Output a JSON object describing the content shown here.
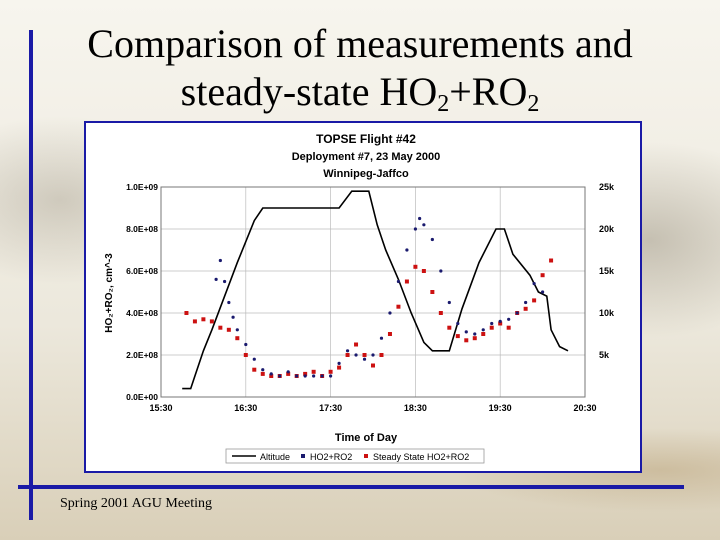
{
  "slide": {
    "title_line1": "Comparison of measurements and",
    "title_line2_prefix": "steady-state HO",
    "title_sub1": "2",
    "title_mid": "+RO",
    "title_sub2": "2",
    "footer": "Spring 2001 AGU Meeting"
  },
  "colors": {
    "frame": "#1a1aa6",
    "altitude": "#000000",
    "measured": "#1a1a6e",
    "steady": "#cc1111"
  },
  "chart_data": {
    "type": "line",
    "title": "TOPSE Flight #42",
    "subtitle_1": "Deployment #7, 23 May 2000",
    "subtitle_2": "Winnipeg-Jaffco",
    "xlabel": "Time of Day",
    "ylabel": "HO₂+RO₂, cm^-3",
    "x_ticks": [
      "15:30",
      "16:30",
      "17:30",
      "18:30",
      "19:30",
      "20:30"
    ],
    "xlim_hours": [
      15.5,
      20.5
    ],
    "y_ticks_left": [
      "0.0E+00",
      "2.0E+08",
      "4.0E+08",
      "6.0E+08",
      "8.0E+08",
      "1.0E+09"
    ],
    "ylim_left": [
      0,
      1000000000.0
    ],
    "y_ticks_right": [
      "5k",
      "10k",
      "15k",
      "20k",
      "25k"
    ],
    "ylim_right_ft": [
      0,
      25000
    ],
    "grid": true,
    "legend_position": "bottom",
    "series": [
      {
        "name": "Altitude",
        "style": "line",
        "axis": "right",
        "points": [
          [
            15.75,
            1000
          ],
          [
            15.85,
            1000
          ],
          [
            15.9,
            2500
          ],
          [
            16.0,
            5500
          ],
          [
            16.1,
            8000
          ],
          [
            16.4,
            16000
          ],
          [
            16.6,
            21000
          ],
          [
            16.7,
            22500
          ],
          [
            17.6,
            22500
          ],
          [
            17.75,
            24500
          ],
          [
            17.95,
            24500
          ],
          [
            18.05,
            20500
          ],
          [
            18.15,
            17500
          ],
          [
            18.3,
            14000
          ],
          [
            18.45,
            10000
          ],
          [
            18.6,
            6500
          ],
          [
            18.7,
            5500
          ],
          [
            18.9,
            5500
          ],
          [
            19.05,
            10500
          ],
          [
            19.25,
            16000
          ],
          [
            19.45,
            20000
          ],
          [
            19.55,
            20000
          ],
          [
            19.65,
            17000
          ],
          [
            19.85,
            14500
          ],
          [
            19.95,
            12500
          ],
          [
            20.05,
            12000
          ],
          [
            20.1,
            8000
          ],
          [
            20.2,
            6000
          ],
          [
            20.3,
            5500
          ]
        ]
      },
      {
        "name": "HO2+RO2",
        "style": "points",
        "axis": "left",
        "points": [
          [
            16.15,
            560000000.0
          ],
          [
            16.2,
            650000000.0
          ],
          [
            16.25,
            550000000.0
          ],
          [
            16.3,
            450000000.0
          ],
          [
            16.35,
            380000000.0
          ],
          [
            16.4,
            320000000.0
          ],
          [
            16.5,
            250000000.0
          ],
          [
            16.6,
            180000000.0
          ],
          [
            16.7,
            130000000.0
          ],
          [
            16.8,
            110000000.0
          ],
          [
            16.9,
            100000000.0
          ],
          [
            17.0,
            120000000.0
          ],
          [
            17.1,
            100000000.0
          ],
          [
            17.2,
            100000000.0
          ],
          [
            17.3,
            100000000.0
          ],
          [
            17.4,
            100000000.0
          ],
          [
            17.5,
            100000000.0
          ],
          [
            17.6,
            160000000.0
          ],
          [
            17.7,
            220000000.0
          ],
          [
            17.8,
            200000000.0
          ],
          [
            17.9,
            180000000.0
          ],
          [
            18.0,
            200000000.0
          ],
          [
            18.1,
            280000000.0
          ],
          [
            18.2,
            400000000.0
          ],
          [
            18.3,
            550000000.0
          ],
          [
            18.4,
            700000000.0
          ],
          [
            18.5,
            800000000.0
          ],
          [
            18.55,
            850000000.0
          ],
          [
            18.6,
            820000000.0
          ],
          [
            18.7,
            750000000.0
          ],
          [
            18.8,
            600000000.0
          ],
          [
            18.9,
            450000000.0
          ],
          [
            19.0,
            350000000.0
          ],
          [
            19.1,
            310000000.0
          ],
          [
            19.2,
            300000000.0
          ],
          [
            19.3,
            320000000.0
          ],
          [
            19.4,
            350000000.0
          ],
          [
            19.5,
            360000000.0
          ],
          [
            19.6,
            370000000.0
          ],
          [
            19.7,
            400000000.0
          ],
          [
            19.8,
            450000000.0
          ],
          [
            19.9,
            540000000.0
          ],
          [
            20.0,
            500000000.0
          ]
        ]
      },
      {
        "name": "Steady State HO2+RO2",
        "style": "points",
        "axis": "left",
        "points": [
          [
            15.8,
            400000000.0
          ],
          [
            15.9,
            360000000.0
          ],
          [
            16.0,
            370000000.0
          ],
          [
            16.1,
            360000000.0
          ],
          [
            16.2,
            330000000.0
          ],
          [
            16.3,
            320000000.0
          ],
          [
            16.4,
            280000000.0
          ],
          [
            16.5,
            200000000.0
          ],
          [
            16.6,
            130000000.0
          ],
          [
            16.7,
            110000000.0
          ],
          [
            16.8,
            100000000.0
          ],
          [
            16.9,
            100000000.0
          ],
          [
            17.0,
            110000000.0
          ],
          [
            17.1,
            100000000.0
          ],
          [
            17.2,
            110000000.0
          ],
          [
            17.3,
            120000000.0
          ],
          [
            17.4,
            100000000.0
          ],
          [
            17.5,
            120000000.0
          ],
          [
            17.6,
            140000000.0
          ],
          [
            17.7,
            200000000.0
          ],
          [
            17.8,
            250000000.0
          ],
          [
            17.9,
            200000000.0
          ],
          [
            18.0,
            150000000.0
          ],
          [
            18.1,
            200000000.0
          ],
          [
            18.2,
            300000000.0
          ],
          [
            18.3,
            430000000.0
          ],
          [
            18.4,
            550000000.0
          ],
          [
            18.5,
            620000000.0
          ],
          [
            18.6,
            600000000.0
          ],
          [
            18.7,
            500000000.0
          ],
          [
            18.8,
            400000000.0
          ],
          [
            18.9,
            330000000.0
          ],
          [
            19.0,
            290000000.0
          ],
          [
            19.1,
            270000000.0
          ],
          [
            19.2,
            280000000.0
          ],
          [
            19.3,
            300000000.0
          ],
          [
            19.4,
            330000000.0
          ],
          [
            19.5,
            350000000.0
          ],
          [
            19.6,
            330000000.0
          ],
          [
            19.7,
            400000000.0
          ],
          [
            19.8,
            420000000.0
          ],
          [
            19.9,
            460000000.0
          ],
          [
            20.0,
            580000000.0
          ],
          [
            20.1,
            650000000.0
          ]
        ]
      }
    ]
  }
}
